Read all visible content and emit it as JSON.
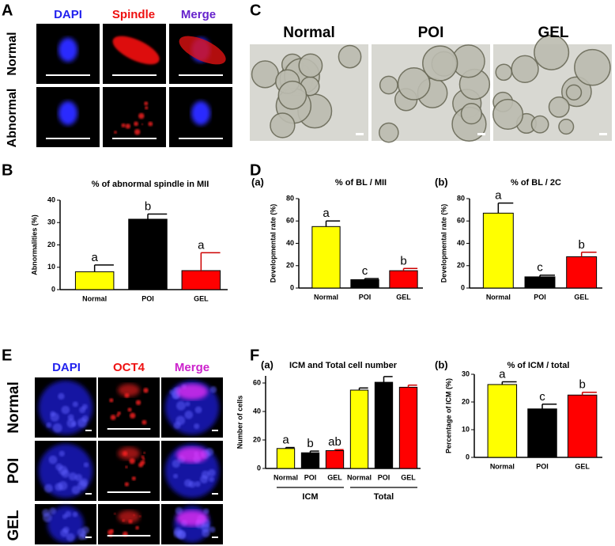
{
  "panel_labels": [
    "A",
    "B",
    "C",
    "D",
    "E",
    "F"
  ],
  "figure_a": {
    "columns": [
      "DAPI",
      "Spindle",
      "Merge"
    ],
    "rows": [
      "Normal",
      "Abnormal"
    ]
  },
  "figure_c": {
    "columns": [
      "Normal",
      "POI",
      "GEL"
    ]
  },
  "figure_e": {
    "columns": [
      "DAPI",
      "OCT4",
      "Merge"
    ],
    "rows": [
      "Normal",
      "POI",
      "GEL"
    ]
  },
  "chart_data": [
    {
      "type": "bar",
      "title": "% of abnormal spindle in MII",
      "ylabel": "Abnormalities (%)",
      "categories": [
        "Normal",
        "POI",
        "GEL"
      ],
      "values": [
        8,
        31.5,
        8.5
      ],
      "errors": [
        3,
        2.3,
        8
      ],
      "letters": [
        "a",
        "b",
        "a"
      ],
      "colors": [
        "#ffff00",
        "#000000",
        "#ff0000"
      ],
      "ylim": [
        0,
        40
      ],
      "yticks": [
        0,
        10,
        20,
        30,
        40
      ]
    },
    {
      "type": "bar",
      "subpanel": "(a)",
      "title": "% of BL / MII",
      "ylabel": "Developmental rate (%)",
      "categories": [
        "Normal",
        "POI",
        "GEL"
      ],
      "values": [
        55,
        7.5,
        15.5
      ],
      "errors": [
        5,
        1,
        2
      ],
      "letters": [
        "a",
        "c",
        "b"
      ],
      "colors": [
        "#ffff00",
        "#000000",
        "#ff0000"
      ],
      "ylim": [
        0,
        80
      ],
      "yticks": [
        0,
        20,
        40,
        60,
        80
      ]
    },
    {
      "type": "bar",
      "subpanel": "(b)",
      "title": "% of BL / 2C",
      "ylabel": "Developmental rate (%)",
      "categories": [
        "Normal",
        "POI",
        "GEL"
      ],
      "values": [
        67,
        10,
        28
      ],
      "errors": [
        9,
        1.5,
        4
      ],
      "letters": [
        "a",
        "c",
        "b"
      ],
      "colors": [
        "#ffff00",
        "#000000",
        "#ff0000"
      ],
      "ylim": [
        0,
        80
      ],
      "yticks": [
        0,
        20,
        40,
        60,
        80
      ]
    },
    {
      "type": "bar",
      "subpanel": "(a)",
      "title": "ICM and Total cell number",
      "ylabel": "Number of cells",
      "categories": [
        "Normal",
        "POI",
        "GEL",
        "Normal",
        "POI",
        "GEL"
      ],
      "values": [
        14,
        11,
        12.5,
        55,
        60.5,
        57
      ],
      "errors": [
        0.7,
        1.2,
        0.7,
        1.5,
        4,
        1.5
      ],
      "letters": [
        "a",
        "b",
        "ab",
        null,
        null,
        null
      ],
      "colors": [
        "#ffff00",
        "#000000",
        "#ff0000",
        "#ffff00",
        "#000000",
        "#ff0000"
      ],
      "groups": [
        "ICM",
        "Total"
      ],
      "ylim": [
        0,
        65
      ],
      "yticks": [
        0,
        20,
        40,
        60
      ]
    },
    {
      "type": "bar",
      "subpanel": "(b)",
      "title": "% of ICM / total",
      "ylabel": "Percentage of ICM (%)",
      "categories": [
        "Normal",
        "POI",
        "GEL"
      ],
      "values": [
        26.3,
        17.5,
        22.5
      ],
      "errors": [
        1,
        1.7,
        1
      ],
      "letters": [
        "a",
        "c",
        "b"
      ],
      "colors": [
        "#ffff00",
        "#000000",
        "#ff0000"
      ],
      "ylim": [
        0,
        30
      ],
      "yticks": [
        0,
        10,
        20,
        30
      ]
    }
  ]
}
